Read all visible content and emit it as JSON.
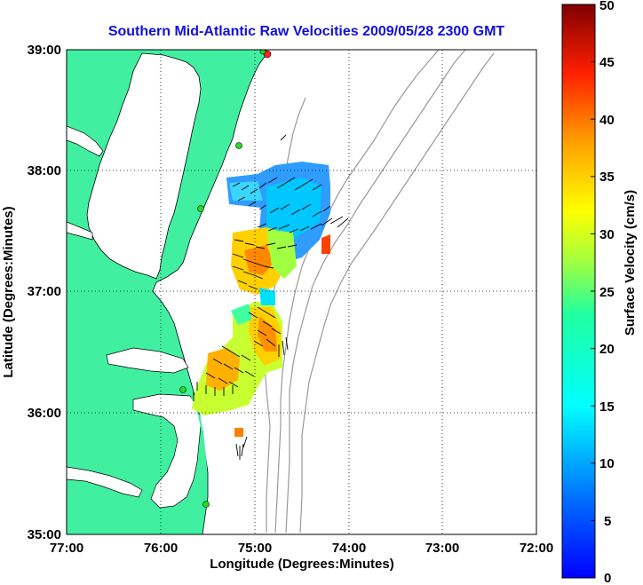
{
  "title": "Southern Mid-Atlantic Raw Velocities 2009/05/28 2300 GMT",
  "map": {
    "x_label": "Longitude (Degrees:Minutes)",
    "y_label": "Latitude (Degrees:Minutes)",
    "lon_ticks": [
      "77:00",
      "76:00",
      "75:00",
      "74:00",
      "73:00",
      "72:00"
    ],
    "lat_ticks": [
      "39:00",
      "38:00",
      "37:00",
      "36:00",
      "35:00"
    ],
    "lon_range": [
      -77,
      -72
    ],
    "lat_range": [
      35,
      39
    ],
    "land_color": "#40f0a0",
    "contour_color": "#999999",
    "station_color": "#22dd22"
  },
  "colorbar": {
    "label": "Surface Velocity (cm/s)",
    "ticks": [
      "50",
      "45",
      "40",
      "35",
      "30",
      "25",
      "20",
      "15",
      "10",
      "5",
      "0"
    ],
    "range": [
      0,
      50
    ],
    "colormap": "jet"
  }
}
